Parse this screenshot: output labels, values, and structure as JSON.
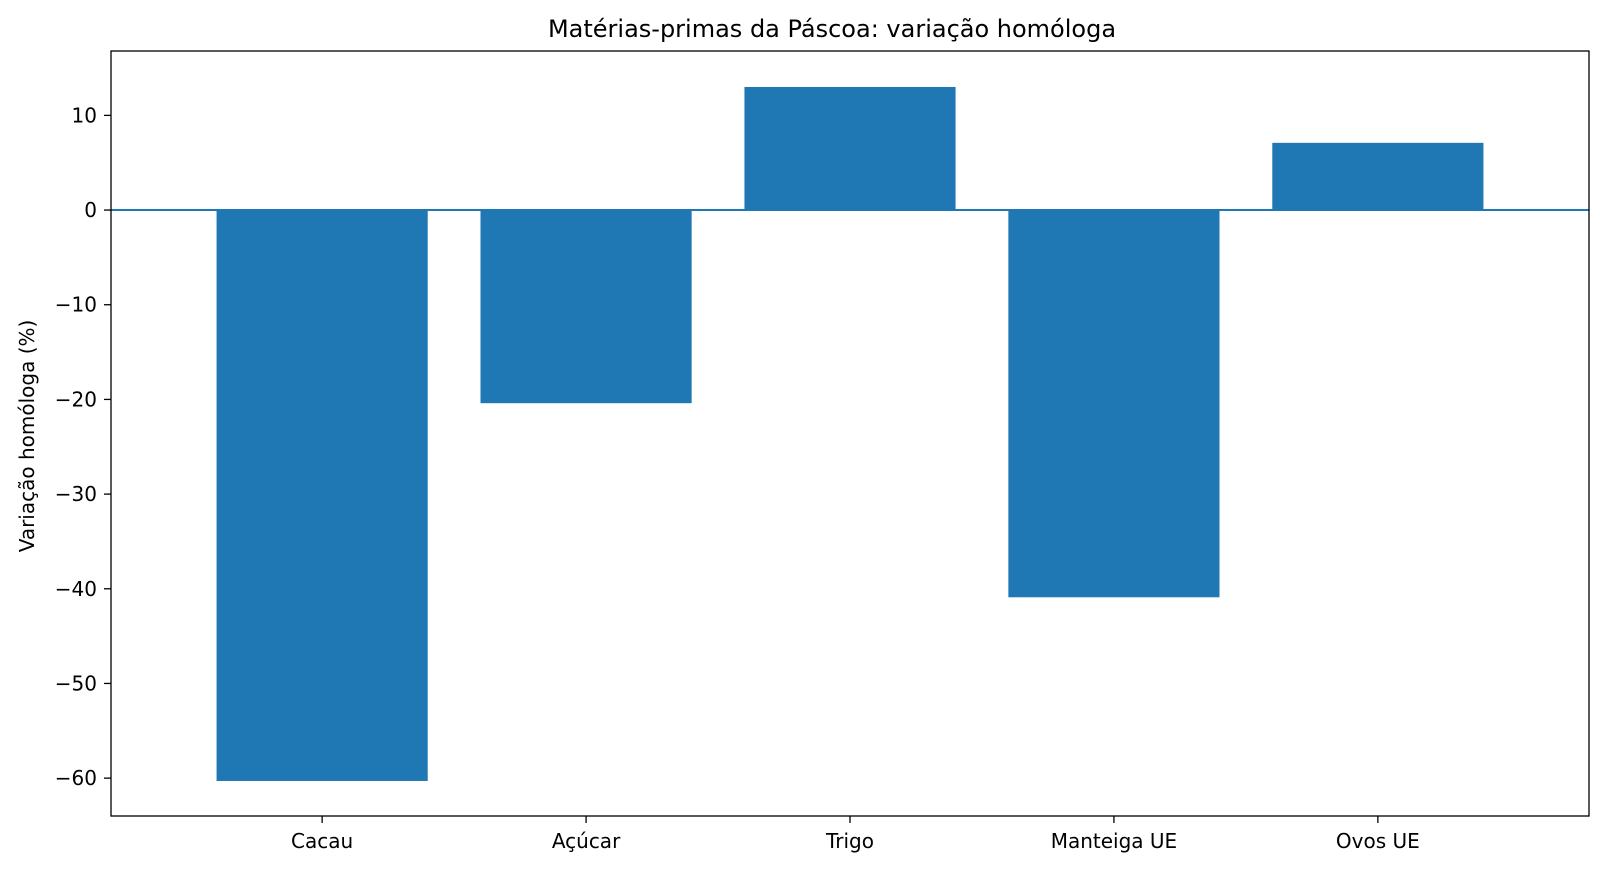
{
  "chart_data": {
    "type": "bar",
    "title": "Matérias-primas da Páscoa: variação homóloga",
    "xlabel": "",
    "ylabel": "Variação homóloga (%)",
    "categories": [
      "Cacau",
      "Açúcar",
      "Trigo",
      "Manteiga UE",
      "Ovos UE"
    ],
    "values": [
      -60.3,
      -20.4,
      13.0,
      -40.9,
      7.1
    ],
    "ylim": [
      -64,
      16.8
    ],
    "yticks": [
      10,
      0,
      -10,
      -20,
      -30,
      -40,
      -50,
      -60
    ],
    "ytick_labels": [
      "10",
      "0",
      "−10",
      "−20",
      "−30",
      "−40",
      "−50",
      "−60"
    ],
    "bar_color": "#1f77b4",
    "zero_line": true,
    "grid": false,
    "legend": "none"
  }
}
